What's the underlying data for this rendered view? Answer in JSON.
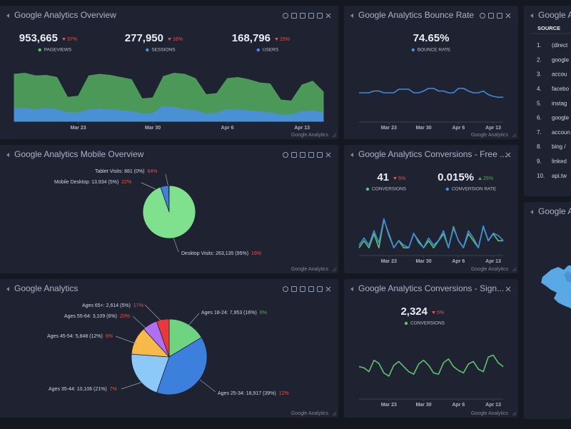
{
  "overview": {
    "title": "Google Analytics Overview",
    "kpis": [
      {
        "value": "953,665",
        "change": "37%",
        "trend": "down",
        "label": "PAGEVIEWS",
        "color": "#5cc46e"
      },
      {
        "value": "277,950",
        "change": "16%",
        "trend": "down",
        "label": "SESSIONS",
        "color": "#4a90e2"
      },
      {
        "value": "168,796",
        "change": "15%",
        "trend": "down",
        "label": "USERS",
        "color": "#4a90e2"
      }
    ],
    "chart": {
      "type": "area",
      "categories": [
        null,
        null,
        null,
        null,
        null,
        null,
        "Mar 23",
        null,
        null,
        null,
        null,
        null,
        null,
        "Mar 30",
        null,
        null,
        null,
        null,
        null,
        null,
        "Apr 6",
        null,
        null,
        null,
        null,
        null,
        null,
        "Apr 13",
        null,
        null
      ],
      "ylim": [
        0,
        100
      ],
      "series": [
        {
          "color": "#4e9f5c",
          "values": [
            88,
            90,
            85,
            86,
            82,
            45,
            47,
            85,
            88,
            86,
            82,
            78,
            42,
            44,
            84,
            90,
            88,
            80,
            50,
            52,
            80,
            82,
            78,
            72,
            70,
            40,
            38,
            68,
            75,
            55
          ]
        },
        {
          "color": "#4a8fdc",
          "values": [
            25,
            24,
            22,
            24,
            22,
            16,
            16,
            22,
            23,
            22,
            20,
            18,
            14,
            15,
            28,
            26,
            22,
            20,
            14,
            15,
            22,
            21,
            20,
            18,
            16,
            12,
            12,
            18,
            20,
            16
          ]
        }
      ]
    },
    "footer": "Google Analytics"
  },
  "bounce_rate": {
    "title": "Google Analytics Bounce Rate",
    "kpis": [
      {
        "value": "74.65%",
        "label": "BOUNCE RATE",
        "color": "#4a90e2"
      }
    ],
    "chart": {
      "type": "line",
      "categories": [
        null,
        null,
        null,
        null,
        null,
        null,
        "Mar 23",
        null,
        null,
        null,
        null,
        null,
        null,
        "Mar 30",
        null,
        null,
        null,
        null,
        null,
        null,
        "Apr 6",
        null,
        null,
        null,
        null,
        null,
        null,
        "Apr 13",
        null,
        null
      ],
      "ylim": [
        40,
        100
      ],
      "series": [
        {
          "color": "#3f8be0",
          "values": [
            72,
            72,
            72,
            74,
            74,
            72,
            72,
            72,
            76,
            76,
            76,
            72,
            72,
            74,
            77,
            77,
            74,
            74,
            72,
            72,
            77,
            77,
            74,
            72,
            72,
            74,
            70,
            68,
            67,
            67
          ]
        }
      ]
    },
    "footer": "Google Analytics"
  },
  "top_sources": {
    "title": "Google A",
    "header": "SOURCE",
    "rows": [
      [
        "1.",
        "(direct"
      ],
      [
        "2.",
        "google"
      ],
      [
        "3.",
        "accou"
      ],
      [
        "4.",
        "facebo"
      ],
      [
        "5.",
        "instag"
      ],
      [
        "6.",
        "google"
      ],
      [
        "7.",
        "accoun"
      ],
      [
        "8.",
        "bing /"
      ],
      [
        "9.",
        "linked"
      ],
      [
        "10.",
        "api.tw"
      ]
    ]
  },
  "mobile_overview": {
    "title": "Google Analytics Mobile Overview",
    "chart": {
      "type": "pie",
      "slices": [
        {
          "label": "Tablet Visits: 881 (0%)",
          "value": 881,
          "change": "64%",
          "trend": "down",
          "color": "#e84a4a"
        },
        {
          "label": "Mobile Desktop: 13,934 (5%)",
          "value": 13934,
          "change": "22%",
          "trend": "down",
          "color": "#3d7fdc"
        },
        {
          "label": "Desktop Visits: 263,135 (95%)",
          "value": 263135,
          "change": "16%",
          "trend": "down",
          "color": "#7fe08d"
        }
      ]
    },
    "footer": "Google Analytics"
  },
  "conversions_free": {
    "title": "Google Analytics Conversions - Free ...",
    "kpis": [
      {
        "value": "41",
        "change": "5%",
        "trend": "down",
        "label": "CONVERSIONS",
        "color": "#5cc46e"
      },
      {
        "value": "0.015%",
        "change": "25%",
        "trend": "up",
        "label": "CONVERSION RATE",
        "color": "#4a90e2"
      }
    ],
    "chart": {
      "type": "line",
      "categories": [
        null,
        null,
        null,
        null,
        null,
        null,
        "Mar 23",
        null,
        null,
        null,
        null,
        null,
        null,
        "Mar 30",
        null,
        null,
        null,
        null,
        null,
        null,
        "Apr 6",
        null,
        null,
        null,
        null,
        null,
        null,
        "Apr 13",
        null,
        null
      ],
      "ylim": [
        0,
        6
      ],
      "y2lim": [
        0,
        0.035
      ],
      "series": [
        {
          "color": "#5cc46e",
          "values": [
            1,
            2,
            1,
            3,
            1,
            5,
            3,
            1,
            2,
            1,
            1,
            3,
            2,
            1,
            2,
            1,
            2,
            3,
            1,
            4,
            2,
            1,
            3,
            2,
            1,
            4,
            2,
            3,
            2,
            2
          ]
        },
        {
          "color": "#3f8be0",
          "axis": "y2",
          "values": [
            0.008,
            0.014,
            0.008,
            0.02,
            0.01,
            0.03,
            0.016,
            0.006,
            0.012,
            0.008,
            0.006,
            0.018,
            0.01,
            0.006,
            0.014,
            0.008,
            0.012,
            0.02,
            0.006,
            0.022,
            0.012,
            0.006,
            0.02,
            0.014,
            0.006,
            0.024,
            0.012,
            0.018,
            0.016,
            0.012
          ]
        }
      ]
    },
    "footer": "Google Analytics"
  },
  "map": {
    "title": "Google A"
  },
  "demographics": {
    "title": "Google Analytics",
    "chart": {
      "type": "pie",
      "slices": [
        {
          "label": "Ages 18-24: 7,953 (16%)",
          "value": 7953,
          "change": "6%",
          "trend": "up",
          "color": "#6fd47f"
        },
        {
          "label": "Ages 25-34: 18,917 (39%)",
          "value": 18917,
          "change": "12%",
          "trend": "down",
          "color": "#3d7fdc"
        },
        {
          "label": "Ages 35-44: 10,106 (21%)",
          "value": 10106,
          "change": "7%",
          "trend": "down",
          "color": "#8cc8f8"
        },
        {
          "label": "Ages 45-54: 5,848 (12%)",
          "value": 5848,
          "change": "6%",
          "trend": "down",
          "color": "#f6b94a"
        },
        {
          "label": "Ages 55-64: 3,109 (6%)",
          "value": 3109,
          "change": "20%",
          "trend": "down",
          "color": "#b06ef0"
        },
        {
          "label": "Ages 65+: 2,614 (5%)",
          "value": 2614,
          "change": "17%",
          "trend": "down",
          "color": "#e8383b"
        }
      ]
    },
    "footer": "Google Analytics"
  },
  "conversions_signup": {
    "title": "Google Analytics Conversions - Sign...",
    "kpis": [
      {
        "value": "2,324",
        "change": "5%",
        "trend": "down",
        "label": "CONVERSIONS",
        "color": "#5cc46e"
      }
    ],
    "chart": {
      "type": "line",
      "categories": [
        null,
        null,
        null,
        null,
        null,
        null,
        "Mar 23",
        null,
        null,
        null,
        null,
        null,
        null,
        "Mar 30",
        null,
        null,
        null,
        null,
        null,
        null,
        "Apr 6",
        null,
        null,
        null,
        null,
        null,
        null,
        "Apr 13",
        null,
        null
      ],
      "ylim": [
        20,
        110
      ],
      "series": [
        {
          "color": "#5cc46e",
          "values": [
            70,
            68,
            62,
            80,
            75,
            60,
            55,
            72,
            78,
            70,
            62,
            58,
            74,
            80,
            72,
            60,
            58,
            76,
            82,
            70,
            64,
            60,
            74,
            78,
            66,
            62,
            85,
            88,
            76,
            70
          ]
        }
      ]
    },
    "footer": "Google Analytics"
  }
}
